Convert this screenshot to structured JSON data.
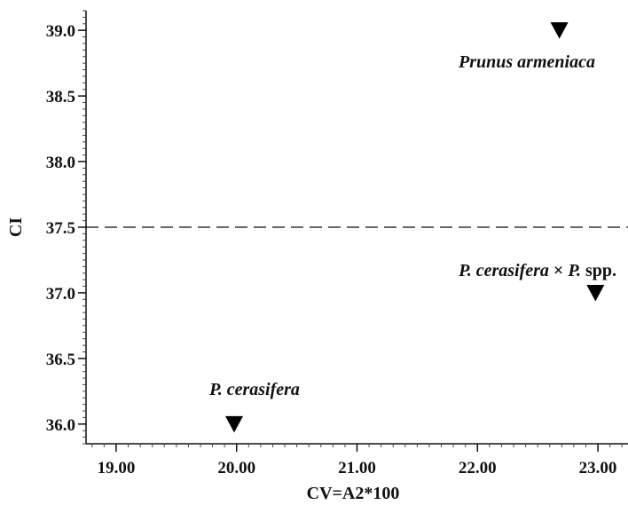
{
  "chart_data": {
    "type": "scatter",
    "xlabel": "CV=A2*100",
    "ylabel": "CI",
    "xlim": [
      18.75,
      23.25
    ],
    "ylim": [
      35.85,
      39.15
    ],
    "x_ticks": [
      19.0,
      20.0,
      21.0,
      22.0,
      23.0
    ],
    "x_tick_labels": [
      "19.00",
      "20.00",
      "21.00",
      "22.00",
      "23.00"
    ],
    "y_ticks": [
      36.0,
      36.5,
      37.0,
      37.5,
      38.0,
      38.5,
      39.0
    ],
    "y_tick_labels": [
      "36.0",
      "36.5",
      "37.0",
      "37.5",
      "38.0",
      "38.5",
      "39.0"
    ],
    "grid": false,
    "reference_line": {
      "axis": "y",
      "value": 37.5,
      "style": "dashed"
    },
    "marker": "inverted-triangle",
    "points": [
      {
        "x": 22.68,
        "y": 39.0,
        "label": "Prunus armeniaca",
        "label_parts": [
          {
            "text": "Prunus armeniaca",
            "italic": true
          }
        ]
      },
      {
        "x": 22.98,
        "y": 37.0,
        "label": "P. cerasifera × P. spp.",
        "label_parts": [
          {
            "text": "P. cerasifera",
            "italic": true
          },
          {
            "text": " × ",
            "italic": false
          },
          {
            "text": "P.",
            "italic": true
          },
          {
            "text": " spp.",
            "italic": false
          }
        ]
      },
      {
        "x": 19.98,
        "y": 36.0,
        "label": "P. cerasifera",
        "label_parts": [
          {
            "text": "P. cerasifera",
            "italic": true
          }
        ]
      }
    ]
  }
}
